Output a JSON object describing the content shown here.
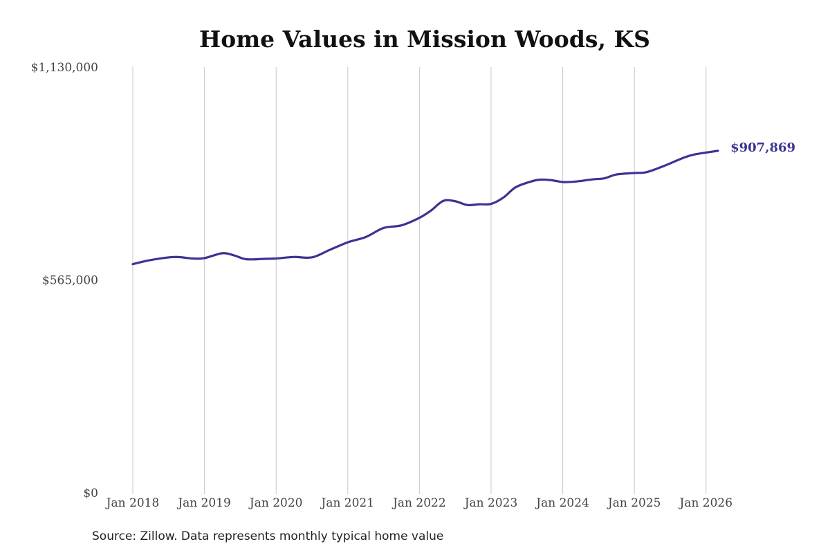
{
  "chart_data": {
    "type": "line",
    "title": "Home Values in Mission Woods, KS",
    "source": "Source: Zillow. Data represents monthly typical home value",
    "end_label": "$907,869",
    "line_color": "#3b3393",
    "ylim": [
      0,
      1130000
    ],
    "y_ticks": [
      {
        "value": 0,
        "label": "$0"
      },
      {
        "value": 565000,
        "label": "$565,000"
      },
      {
        "value": 1130000,
        "label": "$1,130,000"
      }
    ],
    "x_ticks": [
      {
        "value": "2018-01",
        "label": "Jan 2018"
      },
      {
        "value": "2019-01",
        "label": "Jan 2019"
      },
      {
        "value": "2020-01",
        "label": "Jan 2020"
      },
      {
        "value": "2021-01",
        "label": "Jan 2021"
      },
      {
        "value": "2022-01",
        "label": "Jan 2022"
      },
      {
        "value": "2023-01",
        "label": "Jan 2023"
      },
      {
        "value": "2024-01",
        "label": "Jan 2024"
      },
      {
        "value": "2025-01",
        "label": "Jan 2025"
      },
      {
        "value": "2026-01",
        "label": "Jan 2026"
      }
    ],
    "grid": "vertical",
    "series": [
      {
        "points": [
          {
            "x": "2018-01",
            "y": 607000
          },
          {
            "x": "2018-04",
            "y": 618000
          },
          {
            "x": "2018-08",
            "y": 626000
          },
          {
            "x": "2018-11",
            "y": 622000
          },
          {
            "x": "2019-01",
            "y": 623000
          },
          {
            "x": "2019-04",
            "y": 636000
          },
          {
            "x": "2019-06",
            "y": 630000
          },
          {
            "x": "2019-08",
            "y": 620000
          },
          {
            "x": "2019-11",
            "y": 621000
          },
          {
            "x": "2020-01",
            "y": 622000
          },
          {
            "x": "2020-04",
            "y": 626000
          },
          {
            "x": "2020-07",
            "y": 625000
          },
          {
            "x": "2020-10",
            "y": 645000
          },
          {
            "x": "2021-01",
            "y": 665000
          },
          {
            "x": "2021-04",
            "y": 679000
          },
          {
            "x": "2021-07",
            "y": 703000
          },
          {
            "x": "2021-10",
            "y": 710000
          },
          {
            "x": "2022-01",
            "y": 730000
          },
          {
            "x": "2022-03",
            "y": 750000
          },
          {
            "x": "2022-05",
            "y": 775000
          },
          {
            "x": "2022-07",
            "y": 774000
          },
          {
            "x": "2022-09",
            "y": 764000
          },
          {
            "x": "2022-11",
            "y": 766000
          },
          {
            "x": "2023-01",
            "y": 767000
          },
          {
            "x": "2023-03",
            "y": 783000
          },
          {
            "x": "2023-05",
            "y": 810000
          },
          {
            "x": "2023-07",
            "y": 823000
          },
          {
            "x": "2023-09",
            "y": 831000
          },
          {
            "x": "2023-11",
            "y": 830000
          },
          {
            "x": "2024-01",
            "y": 825000
          },
          {
            "x": "2024-03",
            "y": 826000
          },
          {
            "x": "2024-06",
            "y": 832000
          },
          {
            "x": "2024-08",
            "y": 835000
          },
          {
            "x": "2024-10",
            "y": 845000
          },
          {
            "x": "2025-01",
            "y": 849000
          },
          {
            "x": "2025-03",
            "y": 851000
          },
          {
            "x": "2025-06",
            "y": 868000
          },
          {
            "x": "2025-09",
            "y": 888000
          },
          {
            "x": "2025-11",
            "y": 898000
          },
          {
            "x": "2026-03",
            "y": 907869
          }
        ]
      }
    ]
  }
}
